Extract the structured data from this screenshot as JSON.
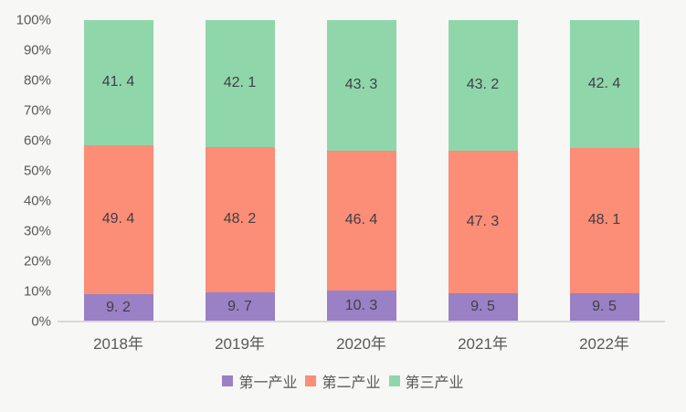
{
  "chart_data": {
    "type": "bar",
    "stacked": true,
    "percent_stacked": true,
    "title": "",
    "xlabel": "",
    "ylabel": "",
    "categories": [
      "2018年",
      "2019年",
      "2020年",
      "2021年",
      "2022年"
    ],
    "series": [
      {
        "name": "第一产业",
        "color": "#9a80c4",
        "values": [
          9.2,
          9.7,
          10.3,
          9.5,
          9.5
        ]
      },
      {
        "name": "第二产业",
        "color": "#fc8d76",
        "values": [
          49.4,
          48.2,
          46.4,
          47.3,
          48.1
        ]
      },
      {
        "name": "第三产业",
        "color": "#90d6ab",
        "values": [
          41.4,
          42.1,
          43.3,
          43.2,
          42.4
        ]
      }
    ],
    "value_labels": [
      [
        "9. 2",
        "9. 7",
        "10. 3",
        "9. 5",
        "9. 5"
      ],
      [
        "49. 4",
        "48. 2",
        "46. 4",
        "47. 3",
        "48. 1"
      ],
      [
        "41. 4",
        "42. 1",
        "43. 3",
        "43. 2",
        "42. 4"
      ]
    ],
    "y_ticks": [
      "0%",
      "10%",
      "20%",
      "30%",
      "40%",
      "50%",
      "60%",
      "70%",
      "80%",
      "90%",
      "100%"
    ],
    "ylim": [
      0,
      100
    ],
    "grid": false,
    "legend_position": "bottom"
  },
  "style": {
    "background_color": "#f7f7f5",
    "axis_line_color": "#d9d9d9",
    "tick_label_color": "#595959",
    "value_label_color": "#3f3f46",
    "category_label_color": "#595959"
  }
}
